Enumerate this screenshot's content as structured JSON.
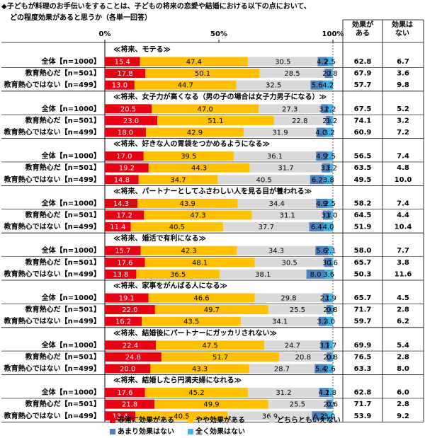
{
  "chart_data": {
    "type": "bar",
    "title": "◆子どもが料理のお手伝いをすることは、子どもの将来の恋愛や結婚における以下の点において、",
    "subtitle": "どの程度効果があると思うか（各単一回答）",
    "xlim": [
      0,
      100
    ],
    "xticks": [
      {
        "value": 0,
        "label": "0%"
      },
      {
        "value": 50,
        "label": "50%"
      },
      {
        "value": 100,
        "label": "100%"
      }
    ],
    "group_titles": [
      "≪将来、モテる≫",
      "≪将来、女子力が高くなる（男の子の場合は女子力男子になる）≫",
      "≪将来、好きな人の胃袋をつかめるようになる≫",
      "≪将来、パートナーとしてふさわしい人を見る目が養われる≫",
      "≪将来、婚活で有利になる≫",
      "≪将来、家事をがんばる人になる≫",
      "≪将来、結婚後にパートナーにガッカリされない≫",
      "≪将来、結婚したら円満夫婦になれる≫"
    ],
    "categories": [
      "全体【n=1000】",
      "教育熱心だ【n=501】",
      "教育熱心ではない【n=499】",
      "全体【n=1000】",
      "教育熱心だ【n=501】",
      "教育熱心ではない【n=499】",
      "全体【n=1000】",
      "教育熱心だ【n=501】",
      "教育熱心ではない【n=499】",
      "全体【n=1000】",
      "教育熱心だ【n=501】",
      "教育熱心ではない【n=499】",
      "全体【n=1000】",
      "教育熱心だ【n=501】",
      "教育熱心ではない【n=499】",
      "全体【n=1000】",
      "教育熱心だ【n=501】",
      "教育熱心ではない【n=499】",
      "全体【n=1000】",
      "教育熱心だ【n=501】",
      "教育熱心ではない【n=499】",
      "全体【n=1000】",
      "教育熱心だ【n=501】",
      "教育熱心ではない【n=499】"
    ],
    "series": [
      {
        "name": "非常に効果がある",
        "color": "#e60012",
        "values": [
          15.4,
          17.8,
          13.0,
          20.5,
          23.0,
          18.0,
          17.0,
          19.2,
          14.8,
          14.3,
          17.2,
          11.4,
          15.7,
          17.6,
          13.8,
          19.1,
          22.0,
          16.2,
          22.4,
          24.8,
          20.0,
          17.6,
          21.8,
          13.4
        ],
        "value_labels": [
          "15.4",
          "17.8",
          "13.0",
          "20.5",
          "23.0",
          "18.0",
          "17.0",
          "19.2",
          "14.8",
          "14.3",
          "17.2",
          "11.4",
          "15.7",
          "17.6",
          "13.8",
          "19.1",
          "22.0",
          "16.2",
          "22.4",
          "24.8",
          "20.0",
          "17.6",
          "21.8",
          "13.4"
        ]
      },
      {
        "name": "やや効果がある",
        "color": "#ffc000",
        "values": [
          47.4,
          50.1,
          44.7,
          47.0,
          51.1,
          42.9,
          39.5,
          44.3,
          34.7,
          43.9,
          47.3,
          40.5,
          42.3,
          48.1,
          36.5,
          46.6,
          49.7,
          43.5,
          47.5,
          51.7,
          43.3,
          45.2,
          49.9,
          40.5
        ],
        "value_labels": [
          "47.4",
          "50.1",
          "44.7",
          "47.0",
          "51.1",
          "42.9",
          "39.5",
          "44.3",
          "34.7",
          "43.9",
          "47.3",
          "40.5",
          "42.3",
          "48.1",
          "36.5",
          "46.6",
          "49.7",
          "43.5",
          "47.5",
          "51.7",
          "43.3",
          "45.2",
          "49.9",
          "40.5"
        ]
      },
      {
        "name": "どちらともいえない",
        "color": "#d9d9d9",
        "values": [
          30.5,
          28.5,
          32.5,
          27.3,
          22.8,
          31.9,
          36.1,
          31.7,
          40.5,
          34.4,
          31.1,
          37.7,
          34.3,
          30.5,
          38.1,
          29.8,
          25.5,
          34.1,
          24.7,
          20.8,
          28.7,
          31.2,
          25.5,
          36.9
        ],
        "value_labels": [
          "30.5",
          "28.5",
          "32.5",
          "27.3",
          "22.8",
          "31.9",
          "36.1",
          "31.7",
          "40.5",
          "34.4",
          "31.1",
          "37.7",
          "34.3",
          "30.5",
          "38.1",
          "29.8",
          "25.5",
          "34.1",
          "24.7",
          "20.8",
          "28.7",
          "31.2",
          "25.5",
          "36.9"
        ]
      },
      {
        "name": "あまり効果はない",
        "color": "#4f81bd",
        "values": [
          4.2,
          2.8,
          5.6,
          3.0,
          2.0,
          4.0,
          4.9,
          3.6,
          6.2,
          4.9,
          3.4,
          6.4,
          5.6,
          3.2,
          8.0,
          2.6,
          2.0,
          3.2,
          3.7,
          2.0,
          5.4,
          4.2,
          2.2,
          6.2
        ],
        "value_labels": [
          "4.2",
          "2.8",
          "5.6",
          "3.0",
          "2.0",
          "4.0",
          "4.9",
          "3.6",
          "6.2",
          "4.9",
          "3.4",
          "6.4",
          "5.6",
          "3.2",
          "8.0",
          "2.6",
          "2.0",
          "3.2",
          "3.7",
          "2.0",
          "5.4",
          "4.2",
          "2.2",
          "6.2"
        ]
      },
      {
        "name": "全く効果はない",
        "color": "#41b6e6",
        "values": [
          2.5,
          0.8,
          4.2,
          2.2,
          1.2,
          3.2,
          2.5,
          1.2,
          3.8,
          2.5,
          1.0,
          4.0,
          2.1,
          0.6,
          3.6,
          1.9,
          0.8,
          3.0,
          1.7,
          0.8,
          2.6,
          1.8,
          0.6,
          3.0
        ],
        "value_labels": [
          "2.5",
          "0.8",
          "4.2",
          "2.2",
          "1.2",
          "3.2",
          "2.5",
          "1.2",
          "3.8",
          "2.5",
          "1.0",
          "4.0",
          "2.1",
          "0.6",
          "3.6",
          "1.9",
          "0.8",
          "3.0",
          "1.7",
          "0.8",
          "2.6",
          "1.8",
          "0.6",
          "3.0"
        ]
      }
    ],
    "summary": {
      "headers": [
        "効果がある",
        "効果はない"
      ],
      "columns": [
        [
          "62.8",
          "67.9",
          "57.7",
          "67.5",
          "74.1",
          "60.9",
          "56.5",
          "63.5",
          "49.5",
          "58.2",
          "64.5",
          "51.9",
          "58.0",
          "65.7",
          "50.3",
          "65.7",
          "71.7",
          "59.7",
          "69.9",
          "76.5",
          "63.3",
          "62.8",
          "71.7",
          "53.9"
        ],
        [
          "6.7",
          "3.6",
          "9.8",
          "5.2",
          "3.2",
          "7.2",
          "7.4",
          "4.8",
          "10.0",
          "7.4",
          "4.4",
          "10.4",
          "7.7",
          "3.8",
          "11.6",
          "4.5",
          "2.8",
          "6.2",
          "5.4",
          "2.8",
          "8.0",
          "6.0",
          "2.8",
          "9.2"
        ]
      ]
    }
  }
}
